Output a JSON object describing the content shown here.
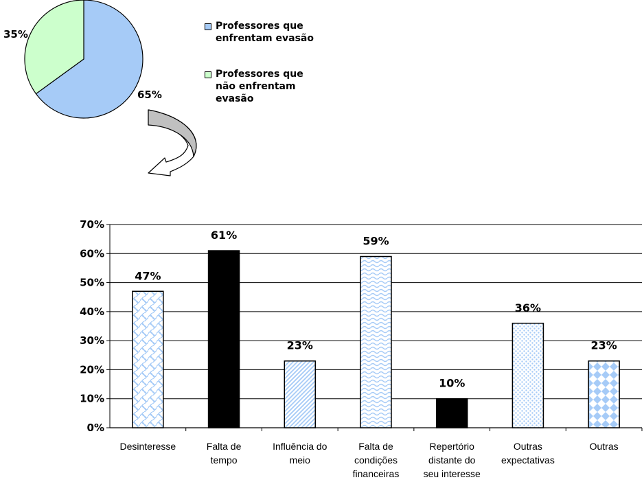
{
  "pie": {
    "slices": [
      {
        "label": "Professores que enfrentam evasão",
        "value": 65,
        "value_label": "65%",
        "color": "#a6cbf7"
      },
      {
        "label": "Professores que não enfrentam evasão",
        "value": 35,
        "value_label": "35%",
        "color": "#ccffcc"
      }
    ],
    "legend": [
      {
        "lines": [
          "Professores que",
          "enfrentam evasão"
        ],
        "color": "#a6cbf7"
      },
      {
        "lines": [
          "Professores que",
          "não enfrentam",
          "evasão"
        ],
        "color": "#ccffcc"
      }
    ]
  },
  "chart_data": {
    "type": "bar",
    "categories": [
      [
        "Desinteresse"
      ],
      [
        "Falta de",
        "tempo"
      ],
      [
        "Influência do",
        "meio"
      ],
      [
        "Falta de",
        "condições",
        "financeiras"
      ],
      [
        "Repertório",
        "distante do",
        "seu interesse"
      ],
      [
        "Outras",
        "expectativas"
      ],
      [
        "Outras"
      ]
    ],
    "values": [
      47,
      61,
      23,
      59,
      10,
      36,
      23
    ],
    "value_labels": [
      "47%",
      "61%",
      "23%",
      "59%",
      "10%",
      "36%",
      "23%"
    ],
    "fills": [
      "lattice",
      "solid-black",
      "diagonal",
      "wave",
      "solid-black",
      "dots",
      "diamonds"
    ],
    "accent_color": "#a6cbf7",
    "ylim": [
      0,
      70
    ],
    "yticks": [
      "0%",
      "10%",
      "20%",
      "30%",
      "40%",
      "50%",
      "60%",
      "70%"
    ],
    "grid": true,
    "title": "",
    "xlabel": "",
    "ylabel": ""
  }
}
